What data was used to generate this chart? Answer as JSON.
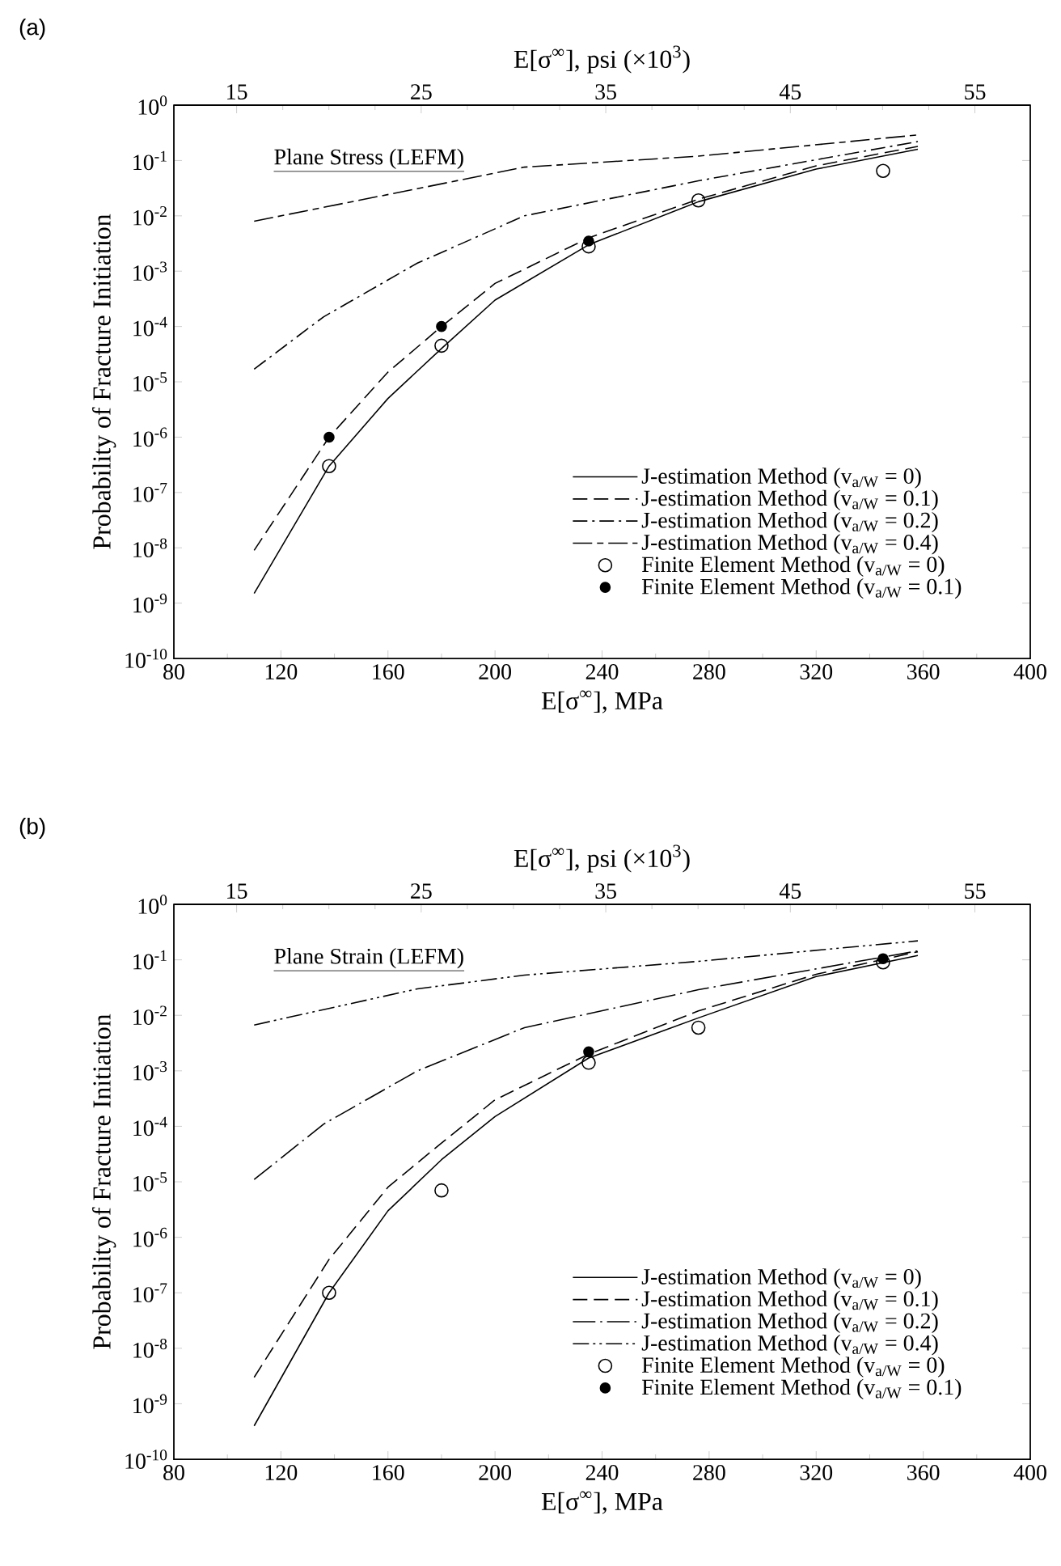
{
  "chart_data": [
    {
      "type": "line",
      "title": "(a)",
      "xlabel": "E[σ$^{∞}$], MPa",
      "x2label": "E[σ$^{∞}$], psi (×10$^{3}$)",
      "ylabel": "Probability of Fracture Initiation",
      "annotations": [
        "Plane Stress (LEFM)"
      ],
      "xlim": [
        80,
        400
      ],
      "xticks": [
        80,
        120,
        160,
        200,
        240,
        280,
        320,
        360,
        400
      ],
      "x2lim": [
        11.6,
        58.0
      ],
      "x2ticks": [
        15,
        25,
        35,
        45,
        55
      ],
      "ylim": [
        1e-10,
        1
      ],
      "log": "y",
      "legend": "bottom right",
      "yticks": [
        {
          "value": 1,
          "label": "10$^{0}$"
        },
        {
          "value": 0.1,
          "label": "10$^{-1}$"
        },
        {
          "value": 0.01,
          "label": "10$^{-2}$"
        },
        {
          "value": 0.001,
          "label": "10$^{-3}$"
        },
        {
          "value": 0.0001,
          "label": "10$^{-4}$"
        },
        {
          "value": 1e-05,
          "label": "10$^{-5}$"
        },
        {
          "value": 1e-06,
          "label": "10$^{-6}$"
        },
        {
          "value": 1e-07,
          "label": "10$^{-7}$"
        },
        {
          "value": 1e-08,
          "label": "10$^{-8}$"
        },
        {
          "value": 1e-09,
          "label": "10$^{-9}$"
        },
        {
          "value": 1e-10,
          "label": "10$^{-10}$"
        }
      ],
      "series": [
        {
          "name": "J-estimation Method (v$_{a/W}$ = 0)",
          "color": "#000000",
          "line_style": "solid",
          "x": [
            110,
            138,
            160,
            180,
            200,
            235,
            276,
            320,
            358
          ],
          "values": [
            1.5e-09,
            3e-07,
            5e-06,
            4e-05,
            0.0003,
            0.003,
            0.018,
            0.07,
            0.16
          ]
        },
        {
          "name": "J-estimation Method (v$_{a/W}$ = 0.1)",
          "color": "#000000",
          "line_style": "dashed",
          "x": [
            110,
            138,
            160,
            180,
            200,
            235,
            276,
            320,
            358
          ],
          "values": [
            9e-09,
            1e-06,
            1.5e-05,
            0.0001,
            0.0006,
            0.004,
            0.02,
            0.08,
            0.18
          ]
        },
        {
          "name": "J-estimation Method (v$_{a/W}$ = 0.2)",
          "color": "#000000",
          "line_style": "dashdot",
          "x": [
            110,
            136,
            171,
            211,
            276,
            358
          ],
          "values": [
            1.7e-05,
            0.00015,
            0.0014,
            0.01,
            0.043,
            0.22
          ]
        },
        {
          "name": "J-estimation Method (v$_{a/W}$ = 0.4)",
          "color": "#000000",
          "line_style": "longshort",
          "x": [
            110,
            171,
            211,
            276,
            358
          ],
          "values": [
            0.008,
            0.031,
            0.076,
            0.12,
            0.29
          ]
        },
        {
          "type": "scatter",
          "name": "Finite Element Method (v$_{a/W}$ = 0)",
          "color": "#000000",
          "marker": "circle-open",
          "x": [
            138,
            180,
            235,
            276,
            345
          ],
          "values": [
            3e-07,
            4.5e-05,
            0.0028,
            0.019,
            0.065
          ]
        },
        {
          "type": "scatter",
          "name": "Finite Element Method (v$_{a/W}$ = 0.1)",
          "color": "#000000",
          "marker": "circle",
          "x": [
            138,
            180,
            235
          ],
          "values": [
            1e-06,
            0.0001,
            0.0035
          ]
        }
      ]
    },
    {
      "type": "line",
      "title": "(b)",
      "xlabel": "E[σ$^{∞}$], MPa",
      "x2label": "E[σ$^{∞}$], psi (×10$^{3}$)",
      "ylabel": "Probability of Fracture Initiation",
      "annotations": [
        "Plane Strain (LEFM)"
      ],
      "xlim": [
        80,
        400
      ],
      "xticks": [
        80,
        120,
        160,
        200,
        240,
        280,
        320,
        360,
        400
      ],
      "x2lim": [
        11.6,
        58.0
      ],
      "x2ticks": [
        15,
        25,
        35,
        45,
        55
      ],
      "ylim": [
        1e-10,
        1
      ],
      "log": "y",
      "legend": "bottom right",
      "yticks": [
        {
          "value": 1,
          "label": "10$^{0}$"
        },
        {
          "value": 0.1,
          "label": "10$^{-1}$"
        },
        {
          "value": 0.01,
          "label": "10$^{-2}$"
        },
        {
          "value": 0.001,
          "label": "10$^{-3}$"
        },
        {
          "value": 0.0001,
          "label": "10$^{-4}$"
        },
        {
          "value": 1e-05,
          "label": "10$^{-5}$"
        },
        {
          "value": 1e-06,
          "label": "10$^{-6}$"
        },
        {
          "value": 1e-07,
          "label": "10$^{-7}$"
        },
        {
          "value": 1e-08,
          "label": "10$^{-8}$"
        },
        {
          "value": 1e-09,
          "label": "10$^{-9}$"
        },
        {
          "value": 1e-10,
          "label": "10$^{-10}$"
        }
      ],
      "series": [
        {
          "name": "J-estimation Method (v$_{a/W}$ = 0)",
          "color": "#000000",
          "line_style": "solid",
          "x": [
            110,
            138,
            160,
            180,
            200,
            235,
            276,
            320,
            358
          ],
          "values": [
            4e-10,
            1e-07,
            3e-06,
            2.5e-05,
            0.00015,
            0.0017,
            0.009,
            0.05,
            0.12
          ]
        },
        {
          "name": "J-estimation Method (v$_{a/W}$ = 0.1)",
          "color": "#000000",
          "line_style": "dashed",
          "x": [
            110,
            138,
            160,
            180,
            200,
            235,
            276,
            320,
            358
          ],
          "values": [
            3e-09,
            4e-07,
            8e-06,
            5e-05,
            0.0003,
            0.002,
            0.012,
            0.055,
            0.14
          ]
        },
        {
          "name": "J-estimation Method (v$_{a/W}$ = 0.2)",
          "color": "#000000",
          "line_style": "longdot",
          "x": [
            110,
            136,
            171,
            211,
            276,
            358
          ],
          "values": [
            1.1e-05,
            0.00011,
            0.001,
            0.006,
            0.029,
            0.145
          ]
        },
        {
          "name": "J-estimation Method (v$_{a/W}$ = 0.4)",
          "color": "#000000",
          "line_style": "dashdotdot",
          "x": [
            110,
            171,
            211,
            276,
            358
          ],
          "values": [
            0.0067,
            0.03,
            0.053,
            0.094,
            0.22
          ]
        },
        {
          "type": "scatter",
          "name": "Finite Element Method (v$_{a/W}$ = 0)",
          "color": "#000000",
          "marker": "circle-open",
          "x": [
            138,
            180,
            235,
            276,
            345
          ],
          "values": [
            1e-07,
            7e-06,
            0.0014,
            0.006,
            0.09
          ]
        },
        {
          "type": "scatter",
          "name": "Finite Element Method (v$_{a/W}$ = 0.1)",
          "color": "#000000",
          "marker": "circle",
          "x": [
            235,
            345
          ],
          "values": [
            0.0022,
            0.105
          ]
        }
      ]
    }
  ]
}
